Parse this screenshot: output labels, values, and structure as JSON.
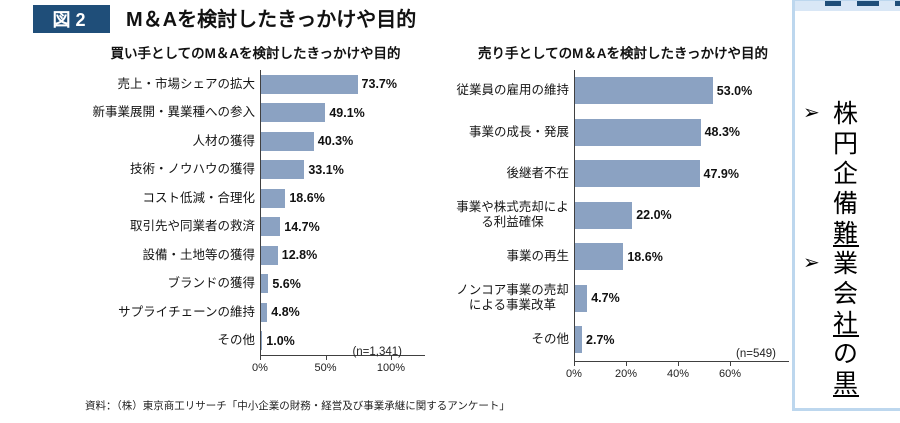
{
  "figure_badge": "図2",
  "figure_title": "M＆Aを検討したきっかけや目的",
  "source_note": "資料：（株）東京商工リサーチ「中小企業の財務・経営及び事業承継に関するアンケート」",
  "colors": {
    "badge_bg": "#1F4E79",
    "bar": "#8BA2C2",
    "axis": "#404040",
    "panel_border": "#BDD7EE",
    "panel_header_bg": "#D9E7F6"
  },
  "chart_data": [
    {
      "type": "bar",
      "orientation": "horizontal",
      "title": "買い手としてのM＆Aを検討したきっかけや目的",
      "categories": [
        "売上・市場シェアの拡大",
        "新事業展開・異業種への参入",
        "人材の獲得",
        "技術・ノウハウの獲得",
        "コスト低減・合理化",
        "取引先や同業者の救済",
        "設備・土地等の獲得",
        "ブランドの獲得",
        "サプライチェーンの維持",
        "その他"
      ],
      "values": [
        73.7,
        49.1,
        40.3,
        33.1,
        18.6,
        14.7,
        12.8,
        5.6,
        4.8,
        1.0
      ],
      "value_labels": [
        "73.7%",
        "49.1%",
        "40.3%",
        "33.1%",
        "18.6%",
        "14.7%",
        "12.8%",
        "5.6%",
        "4.8%",
        "1.0%"
      ],
      "sample_note": "(n=1,341)",
      "xlabel": "",
      "ylabel": "",
      "xlim": [
        0,
        100
      ],
      "grid": false,
      "x_ticks": [
        {
          "value": 0,
          "label": "0%"
        },
        {
          "value": 50,
          "label": "50%"
        },
        {
          "value": 100,
          "label": "100%"
        }
      ]
    },
    {
      "type": "bar",
      "orientation": "horizontal",
      "title": "売り手としてのM＆Aを検討したきっかけや目的",
      "categories": [
        "従業員の雇用の維持",
        "事業の成長・発展",
        "後継者不在",
        "事業や株式売却による利益確保",
        "事業の再生",
        "ノンコア事業の売却による事業改革",
        "その他"
      ],
      "values": [
        53.0,
        48.3,
        47.9,
        22.0,
        18.6,
        4.7,
        2.7
      ],
      "value_labels": [
        "53.0%",
        "48.3%",
        "47.9%",
        "22.0%",
        "18.6%",
        "4.7%",
        "2.7%"
      ],
      "sample_note": "(n=549)",
      "xlabel": "",
      "ylabel": "",
      "xlim": [
        0,
        60
      ],
      "grid": false,
      "x_ticks": [
        {
          "value": 0,
          "label": "0%"
        },
        {
          "value": 20,
          "label": "20%"
        },
        {
          "value": 40,
          "label": "40%"
        },
        {
          "value": 60,
          "label": "60%"
        }
      ]
    }
  ],
  "side_panel": {
    "bullet_icon": "➢",
    "lines": [
      {
        "bullet": true,
        "text": "株",
        "underline": false
      },
      {
        "bullet": false,
        "text": "円",
        "underline": false
      },
      {
        "bullet": false,
        "text": "企",
        "underline": false
      },
      {
        "bullet": false,
        "text": "備",
        "underline": false
      },
      {
        "bullet": false,
        "text": "難",
        "underline": true
      },
      {
        "bullet": true,
        "text": "業",
        "underline": false
      },
      {
        "bullet": false,
        "text": "会",
        "underline": false
      },
      {
        "bullet": false,
        "text": "社",
        "underline": true
      },
      {
        "bullet": false,
        "text": "の",
        "underline": false
      },
      {
        "bullet": false,
        "text": "黒",
        "underline": true
      }
    ]
  }
}
